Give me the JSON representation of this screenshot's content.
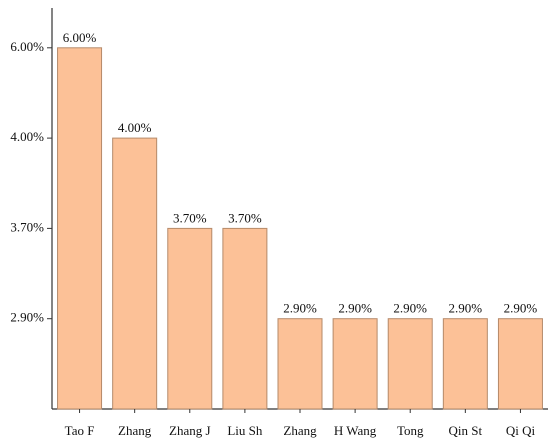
{
  "chart_data": {
    "type": "bar",
    "categories": [
      "Tao F",
      "Zhang",
      "Zhang J",
      "Liu Sh",
      "Zhang",
      "H Wang",
      "Tong",
      "Qin St",
      "Qi Qi"
    ],
    "values": [
      6.0,
      4.0,
      3.7,
      3.7,
      2.9,
      2.9,
      2.9,
      2.9,
      2.9
    ],
    "value_labels": [
      "6.00%",
      "4.00%",
      "3.70%",
      "3.70%",
      "2.90%",
      "2.90%",
      "2.90%",
      "2.90%",
      "2.90%"
    ],
    "color": "#fcc197",
    "yscale": "evenly-spaced-ticks",
    "ylim": [
      2.1,
      6.9
    ],
    "yticks": [
      {
        "value": 2.9,
        "label": "2.90%"
      },
      {
        "value": 3.7,
        "label": "3.70%"
      },
      {
        "value": 4.0,
        "label": "4.00%"
      },
      {
        "value": 6.0,
        "label": "6.00%"
      }
    ]
  }
}
